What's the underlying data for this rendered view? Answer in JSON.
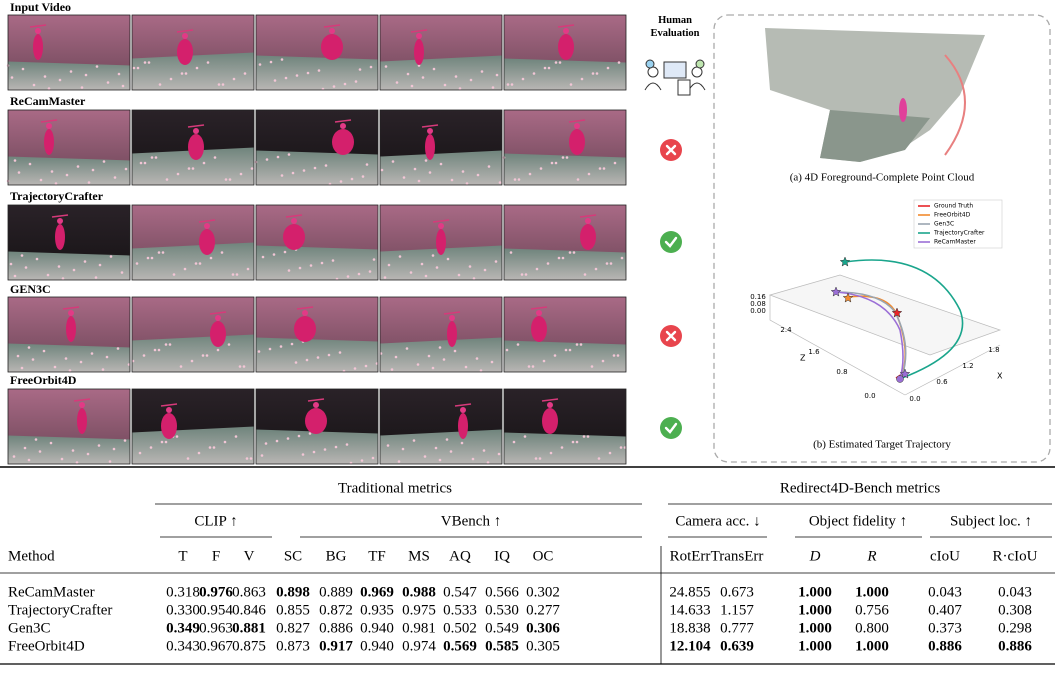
{
  "figure": {
    "rows": [
      "Input Video",
      "ReCamMaster",
      "TrajectoryCrafter",
      "GEN3C",
      "FreeOrbit4D"
    ],
    "human_evaluation": "Human Evaluation",
    "caption_a": "(a) 4D Foreground-Complete Point Cloud",
    "caption_b": "(b) Estimated Target Trajectory",
    "legend": [
      {
        "name": "Ground Truth",
        "color": "#e8262a"
      },
      {
        "name": "FreeOrbit4D",
        "color": "#f28a2e"
      },
      {
        "name": "Gen3C",
        "color": "#9aa5b1"
      },
      {
        "name": "TrajectoryCrafter",
        "color": "#1aa58c"
      },
      {
        "name": "ReCamMaster",
        "color": "#9b6fd6"
      }
    ],
    "z_ticks": [
      "0.16",
      "0.08",
      "0.00"
    ],
    "depth_ticks": [
      "2.4",
      "1.6",
      "0.8",
      "0.0"
    ],
    "depth_label": "Z",
    "x_ticks": [
      "0.0",
      "0.6",
      "1.2",
      "1.8"
    ],
    "x_label": "X"
  },
  "table": {
    "groups": [
      "Traditional metrics",
      "Redirect4D-Bench metrics"
    ],
    "subgroups": [
      "CLIP ↑",
      "VBench ↑",
      "Camera acc. ↓",
      "Object fidelity ↑",
      "Subject loc. ↑"
    ],
    "columns": [
      "Method",
      "T",
      "F",
      "V",
      "SC",
      "BG",
      "TF",
      "MS",
      "AQ",
      "IQ",
      "OC",
      "RotErr",
      "TransErr",
      "D",
      "R",
      "cIoU",
      "R·cIoU"
    ],
    "italic_columns": [
      13,
      14
    ],
    "rows": [
      {
        "cells": [
          "ReCamMaster",
          "0.318",
          "0.976",
          "0.863",
          "0.898",
          "0.889",
          "0.969",
          "0.988",
          "0.547",
          "0.566",
          "0.302",
          "24.855",
          "0.673",
          "1.000",
          "1.000",
          "0.043",
          "0.043"
        ],
        "bold": [
          2,
          4,
          6,
          7,
          13,
          14
        ]
      },
      {
        "cells": [
          "TrajectoryCrafter",
          "0.330",
          "0.954",
          "0.846",
          "0.855",
          "0.872",
          "0.935",
          "0.975",
          "0.533",
          "0.530",
          "0.277",
          "14.633",
          "1.157",
          "1.000",
          "0.756",
          "0.407",
          "0.308"
        ],
        "bold": [
          13
        ]
      },
      {
        "cells": [
          "Gen3C",
          "0.349",
          "0.963",
          "0.881",
          "0.827",
          "0.886",
          "0.940",
          "0.981",
          "0.502",
          "0.549",
          "0.306",
          "18.838",
          "0.777",
          "1.000",
          "0.800",
          "0.373",
          "0.298"
        ],
        "bold": [
          1,
          3,
          10,
          13
        ]
      },
      {
        "cells": [
          "FreeOrbit4D",
          "0.343",
          "0.967",
          "0.875",
          "0.873",
          "0.917",
          "0.940",
          "0.974",
          "0.569",
          "0.585",
          "0.305",
          "12.104",
          "0.639",
          "1.000",
          "1.000",
          "0.886",
          "0.886"
        ],
        "bold": [
          5,
          8,
          9,
          11,
          12,
          13,
          14,
          15,
          16
        ]
      }
    ]
  }
}
